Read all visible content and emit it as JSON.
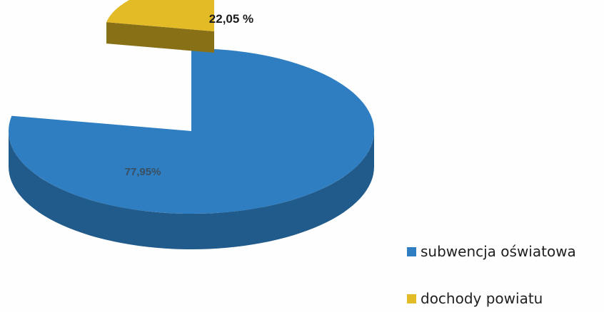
{
  "chart_data": {
    "type": "pie",
    "style": "3d-exploded",
    "categories": [
      "subwencja oświatowa",
      "dochody powiatu"
    ],
    "values": [
      77.95,
      22.05
    ],
    "labels": [
      "77,95%",
      "22,05 %"
    ],
    "colors": [
      "#2e7ec1",
      "#e3bb27"
    ],
    "title": "",
    "legend_position": "bottom-right"
  }
}
